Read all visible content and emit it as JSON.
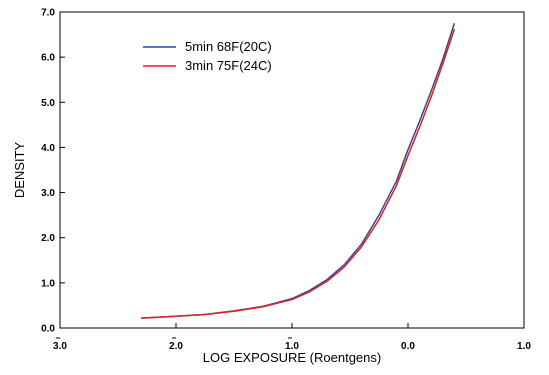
{
  "chart_data": {
    "type": "line",
    "title": "",
    "xlabel": "LOG EXPOSURE (Roentgens)",
    "ylabel": "DENSITY",
    "xlim": [
      -3.0,
      1.0
    ],
    "ylim": [
      0.0,
      7.0
    ],
    "x_ticks": [
      -3.0,
      -2.0,
      -1.0,
      0.0,
      1.0
    ],
    "x_tick_labels": [
      "3.0",
      "2.0",
      "1.0",
      "0.0",
      "1.0"
    ],
    "x_tick_bars": [
      true,
      true,
      true,
      false,
      false
    ],
    "y_ticks": [
      0.0,
      1.0,
      2.0,
      3.0,
      4.0,
      5.0,
      6.0,
      7.0
    ],
    "y_tick_labels": [
      "0.0",
      "1.0",
      "2.0",
      "3.0",
      "4.0",
      "5.0",
      "6.0",
      "7.0"
    ],
    "grid": false,
    "legend_position": "top-left",
    "series": [
      {
        "name": "5min 68F(20C)",
        "color": "#2b4a9e",
        "x": [
          -2.3,
          -2.0,
          -1.75,
          -1.5,
          -1.25,
          -1.0,
          -0.85,
          -0.7,
          -0.55,
          -0.4,
          -0.25,
          -0.1,
          0.0,
          0.1,
          0.2,
          0.3,
          0.4
        ],
        "y": [
          0.22,
          0.26,
          0.3,
          0.38,
          0.48,
          0.65,
          0.83,
          1.07,
          1.4,
          1.86,
          2.5,
          3.25,
          3.95,
          4.58,
          5.25,
          5.95,
          6.75
        ]
      },
      {
        "name": "3min 75F(24C)",
        "color": "#e02020",
        "x": [
          -2.3,
          -2.0,
          -1.75,
          -1.5,
          -1.25,
          -1.0,
          -0.85,
          -0.7,
          -0.55,
          -0.4,
          -0.25,
          -0.1,
          0.0,
          0.1,
          0.2,
          0.3,
          0.4
        ],
        "y": [
          0.22,
          0.26,
          0.3,
          0.37,
          0.47,
          0.63,
          0.8,
          1.03,
          1.35,
          1.8,
          2.4,
          3.15,
          3.82,
          4.45,
          5.12,
          5.85,
          6.62
        ]
      }
    ]
  }
}
